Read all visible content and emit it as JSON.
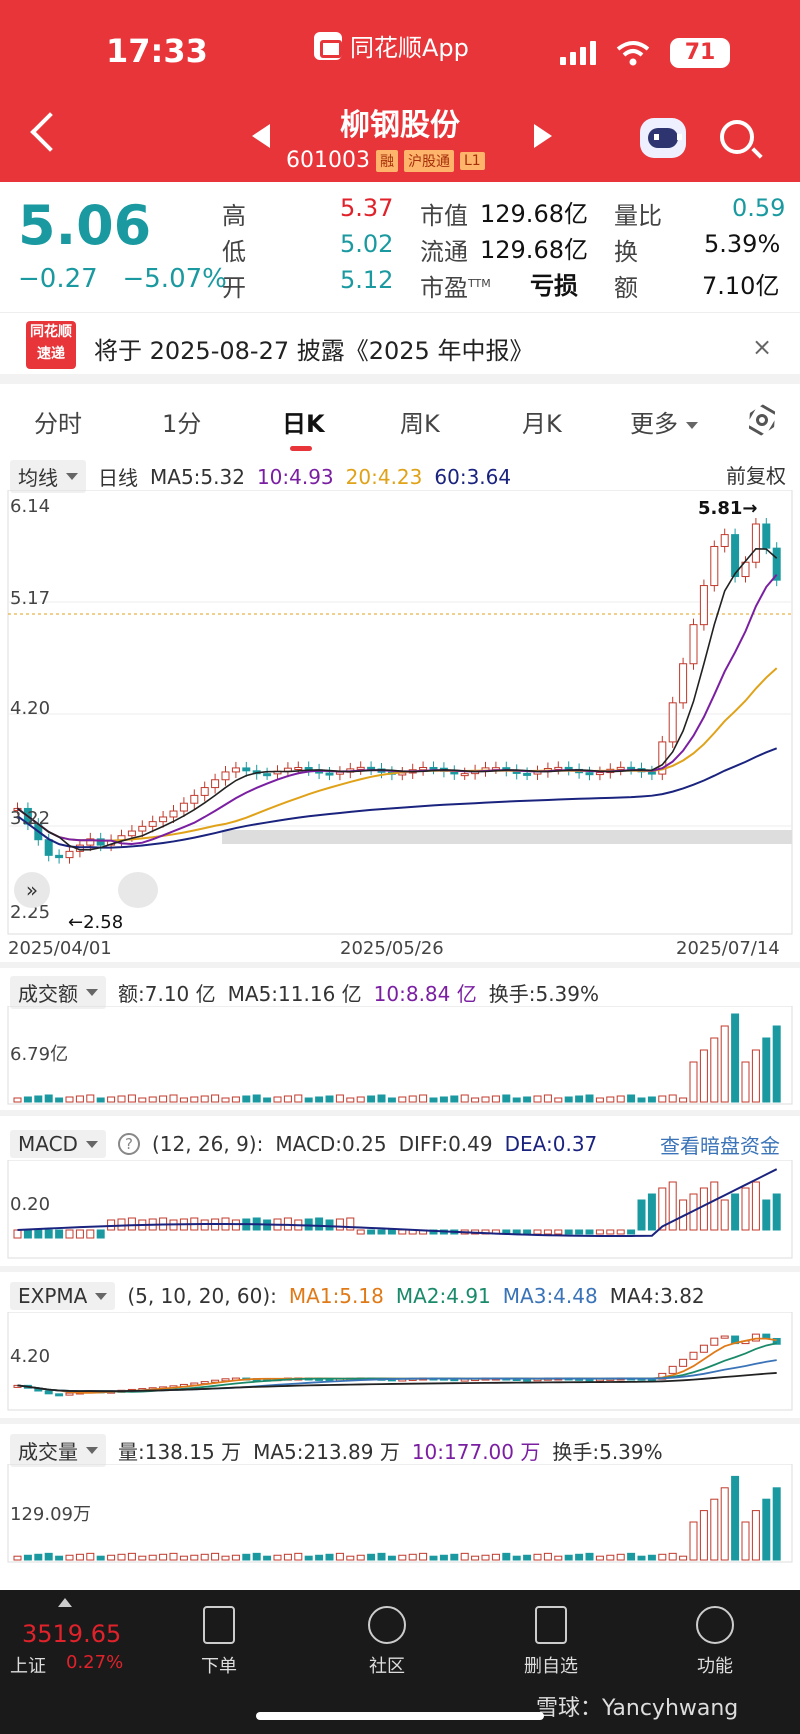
{
  "status": {
    "time": "17:33",
    "app": "同花顺App",
    "battery": "71"
  },
  "stock": {
    "name": "柳钢股份",
    "code": "601003",
    "badges": [
      "融",
      "沪股通",
      "L1"
    ]
  },
  "quote": {
    "price": "5.06",
    "change": "−0.27",
    "change_pct": "−5.07%",
    "high_label": "高",
    "high": "5.37",
    "low_label": "低",
    "low": "5.02",
    "open_label": "开",
    "open": "5.12",
    "mktcap_label": "市值",
    "mktcap": "129.68亿",
    "float_label": "流通",
    "float": "129.68亿",
    "pe_label": "市盈",
    "pe_sup": "TTM",
    "pe": "亏损",
    "vr_label": "量比",
    "vr": "0.59",
    "turnover_label": "换",
    "turnover": "5.39%",
    "amount_label": "额",
    "amount": "7.10亿"
  },
  "notice": {
    "logo_top": "同花顺",
    "logo_bottom": "速递",
    "text": "将于 2025-08-27 披露《2025 年中报》",
    "close": "×"
  },
  "tabs": [
    "分时",
    "1分",
    "日K",
    "周K",
    "月K",
    "更多"
  ],
  "kline": {
    "dropdown": "均线",
    "period": "日线",
    "ma5": "MA5:5.32",
    "ma10": "10:4.93",
    "ma20": "20:4.23",
    "ma60": "60:3.64",
    "adjust": "前复权",
    "y_labels": [
      "6.14",
      "5.17",
      "4.20",
      "3.22",
      "2.25"
    ],
    "x_labels": [
      "2025/04/01",
      "2025/05/26",
      "2025/07/14"
    ],
    "high_mark": "5.81→",
    "low_mark": "←2.58"
  },
  "amount_panel": {
    "dropdown": "成交额",
    "amt": "额:7.10 亿",
    "ma5": "MA5:11.16 亿",
    "ma10": "10:8.84 亿",
    "turnover": "换手:5.39%",
    "y_label": "6.79亿"
  },
  "macd_panel": {
    "dropdown": "MACD",
    "help": "?",
    "params": "(12, 26, 9):",
    "macd": "MACD:0.25",
    "diff": "DIFF:0.49",
    "dea": "DEA:0.37",
    "link": "查看暗盘资金",
    "y_label": "0.20"
  },
  "expma_panel": {
    "dropdown": "EXPMA",
    "params": "(5, 10, 20, 60):",
    "ma1": "MA1:5.18",
    "ma2": "MA2:4.91",
    "ma3": "MA3:4.48",
    "ma4": "MA4:3.82",
    "y_label": "4.20"
  },
  "volume_panel": {
    "dropdown": "成交量",
    "vol": "量:138.15 万",
    "ma5": "MA5:213.89 万",
    "ma10": "10:177.00 万",
    "turnover": "换手:5.39%",
    "y_label": "129.09万"
  },
  "bottom": {
    "index_value": "3519.65",
    "index_name": "上证",
    "index_pct": "0.27%",
    "items": [
      "下单",
      "社区",
      "删自选",
      "功能"
    ],
    "watermark": "雪球：Yancyhwang"
  },
  "colors": {
    "up": "#c0392b",
    "down": "#1a9aa0",
    "header": "#e8353a"
  }
}
